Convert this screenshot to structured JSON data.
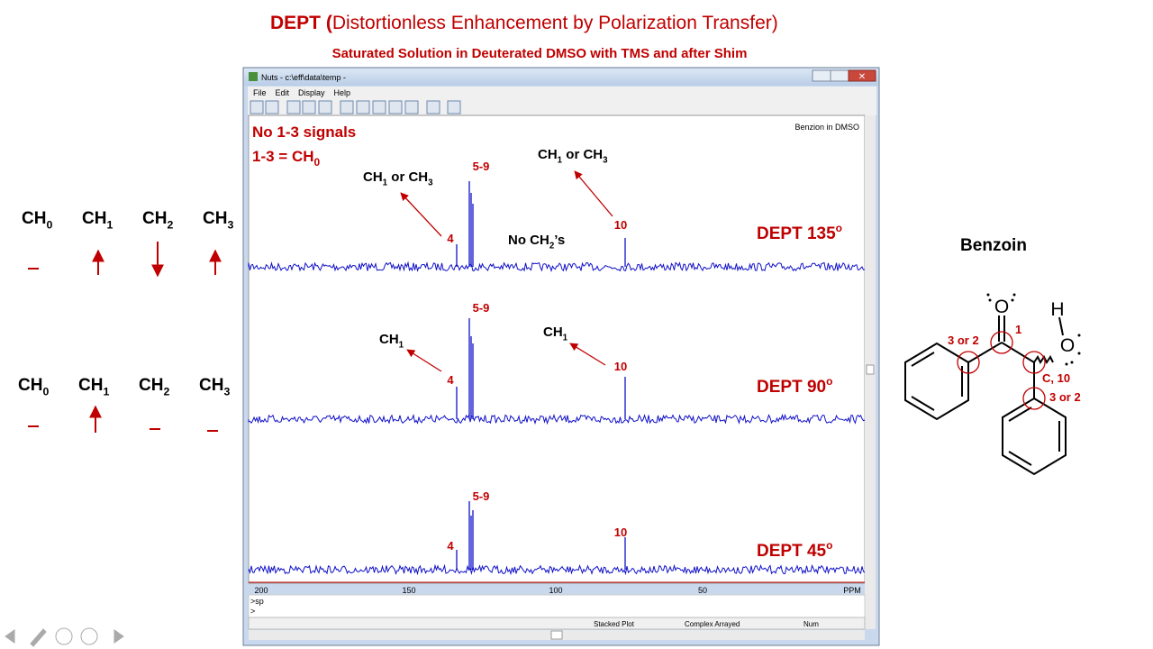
{
  "slide": {
    "title_bold": "DEPT (",
    "title_rest": "Distortionless Enhancement by Polarization Transfer)",
    "subtitle": "Saturated Solution in Deuterated DMSO with TMS and after Shim"
  },
  "legend_rows": [
    [
      {
        "base": "CH",
        "sub": "0"
      },
      {
        "base": "CH",
        "sub": "1"
      },
      {
        "base": "CH",
        "sub": "2"
      },
      {
        "base": "CH",
        "sub": "3"
      }
    ],
    [
      {
        "base": "CH",
        "sub": "0"
      },
      {
        "base": "CH",
        "sub": "1"
      },
      {
        "base": "CH",
        "sub": "2"
      },
      {
        "base": "CH",
        "sub": "3"
      }
    ]
  ],
  "window": {
    "title": "Nuts - c:\\eff\\data\\temp -",
    "menu": [
      "File",
      "Edit",
      "Display",
      "Help"
    ],
    "plot_label": "Benzion in DMSO",
    "note_1": "No 1-3 signals",
    "note_2": {
      "base": "1-3 = CH",
      "sub": "0"
    },
    "axis_labels": [
      "200",
      "150",
      "100",
      "50",
      "PPM"
    ],
    "command_lines": [
      ">sp",
      ">"
    ],
    "status": [
      "Stacked Plot",
      "Complex Arrayed",
      "Num"
    ]
  },
  "panels": [
    {
      "name": "DEPT 135",
      "sup": "o",
      "label_left": {
        "base": "CH",
        "sub": "1",
        "rest": " or CH",
        "sub2": "3"
      },
      "label_right": {
        "base": "CH",
        "sub": "1",
        "rest": " or CH",
        "sub2": "3"
      },
      "peak_4": "4",
      "peak_5_9": "5-9",
      "peak_10": "10",
      "extra": {
        "base": "No CH",
        "sub": "2",
        "rest": "’s"
      }
    },
    {
      "name": "DEPT 90",
      "sup": "o",
      "label_left": {
        "base": "CH",
        "sub": "1"
      },
      "label_right": {
        "base": "CH",
        "sub": "1"
      },
      "peak_4": "4",
      "peak_5_9": "5-9",
      "peak_10": "10"
    },
    {
      "name": "DEPT 45",
      "sup": "o",
      "peak_4": "4",
      "peak_5_9": "5-9",
      "peak_10": "10"
    }
  ],
  "molecule": {
    "name": "Benzoin",
    "atom_o1": "O",
    "atom_h": "H",
    "atom_o2": "O",
    "label_a": "3 or 2",
    "label_b": "1",
    "label_c": "C, 10",
    "label_d": "3 or 2"
  }
}
